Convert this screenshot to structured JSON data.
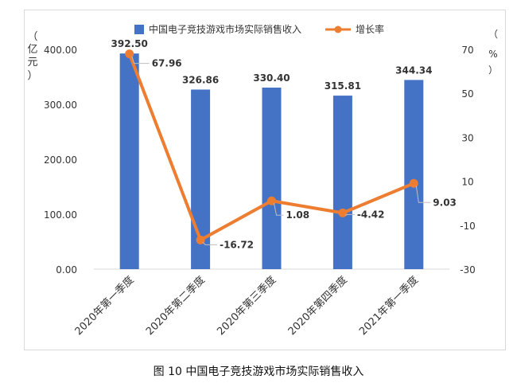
{
  "caption": "图 10  中国电子竞技游戏市场实际销售收入",
  "colors": {
    "bar": "#4472C4",
    "line": "#ED7D31",
    "grid": "#d9d9d9",
    "text": "#333333"
  },
  "chart_data": {
    "type": "bar+line",
    "categories": [
      "2020年第一季度",
      "2020年第二季度",
      "2020年第三季度",
      "2020年第四季度",
      "2021年第一季度"
    ],
    "series": [
      {
        "name": "中国电子竞技游戏市场实际销售收入",
        "type": "bar",
        "axis": "left",
        "values": [
          392.5,
          326.86,
          330.4,
          315.81,
          344.34
        ]
      },
      {
        "name": "增长率",
        "type": "line",
        "axis": "right",
        "values": [
          67.96,
          -16.72,
          1.08,
          -4.42,
          9.03
        ]
      }
    ],
    "bar_labels": [
      "392.50",
      "326.86",
      "330.40",
      "315.81",
      "344.34"
    ],
    "line_labels": [
      "67.96",
      "-16.72",
      "1.08",
      "-4.42",
      "9.03"
    ],
    "left_axis": {
      "label": [
        "（",
        "亿",
        "元",
        "）"
      ],
      "ylim": [
        0,
        400
      ],
      "ticks": [
        "0.00",
        "100.00",
        "200.00",
        "300.00",
        "400.00"
      ]
    },
    "right_axis": {
      "label": [
        "（",
        "%",
        "）"
      ],
      "ylim": [
        -30,
        70
      ],
      "ticks": [
        "-30",
        "-10",
        "10",
        "30",
        "50",
        "70"
      ]
    },
    "legend_position": "top-center"
  }
}
